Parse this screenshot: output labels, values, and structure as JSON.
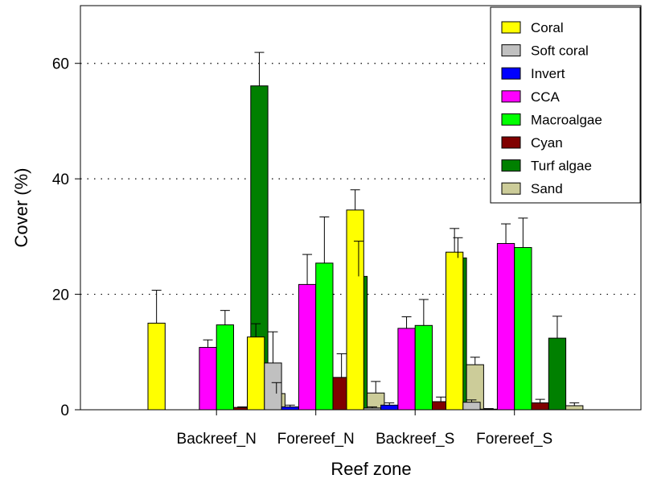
{
  "chart_data": {
    "type": "bar",
    "xlabel": "Reef zone",
    "ylabel": "Cover (%)",
    "ylim": [
      0,
      70
    ],
    "yticks": [
      0,
      20,
      40,
      60
    ],
    "grid": "horizontal dotted at 20, 40, 60",
    "legend_position": "top-right",
    "categories": [
      "Backreef_N",
      "Forereef_N",
      "Backreef_S",
      "Forereef_S"
    ],
    "series": [
      {
        "name": "Coral",
        "color": "#ffff00",
        "values": [
          15.0,
          12.6,
          34.6,
          27.3
        ],
        "errors": [
          5.7,
          2.3,
          3.5,
          4.1
        ]
      },
      {
        "name": "Soft coral",
        "color": "#c0c0c0",
        "values": [
          0.0,
          8.1,
          0.3,
          1.3
        ],
        "errors": [
          0.0,
          5.4,
          0.2,
          0.4
        ]
      },
      {
        "name": "Invert",
        "color": "#0000ff",
        "values": [
          0.0,
          0.5,
          0.8,
          0.1
        ],
        "errors": [
          0.0,
          0.3,
          0.4,
          0.1
        ]
      },
      {
        "name": "CCA",
        "color": "#ff00ff",
        "values": [
          10.8,
          21.7,
          14.1,
          28.8
        ],
        "errors": [
          1.3,
          5.2,
          2.0,
          3.4
        ]
      },
      {
        "name": "Macroalgae",
        "color": "#00ff00",
        "values": [
          14.7,
          25.4,
          14.6,
          28.1
        ],
        "errors": [
          2.5,
          8.0,
          4.5,
          5.1
        ]
      },
      {
        "name": "Cyan",
        "color": "#800000",
        "values": [
          0.4,
          5.6,
          1.4,
          1.2
        ],
        "errors": [
          0.1,
          4.1,
          0.8,
          0.6
        ]
      },
      {
        "name": "Turf algae",
        "color": "#008000",
        "values": [
          56.1,
          23.1,
          26.3,
          12.4
        ],
        "errors": [
          5.8,
          6.1,
          3.5,
          3.8
        ]
      },
      {
        "name": "Sand",
        "color": "#cccc99",
        "values": [
          2.8,
          2.9,
          7.8,
          0.7
        ],
        "errors": [
          1.9,
          2.0,
          1.3,
          0.5
        ]
      }
    ]
  }
}
